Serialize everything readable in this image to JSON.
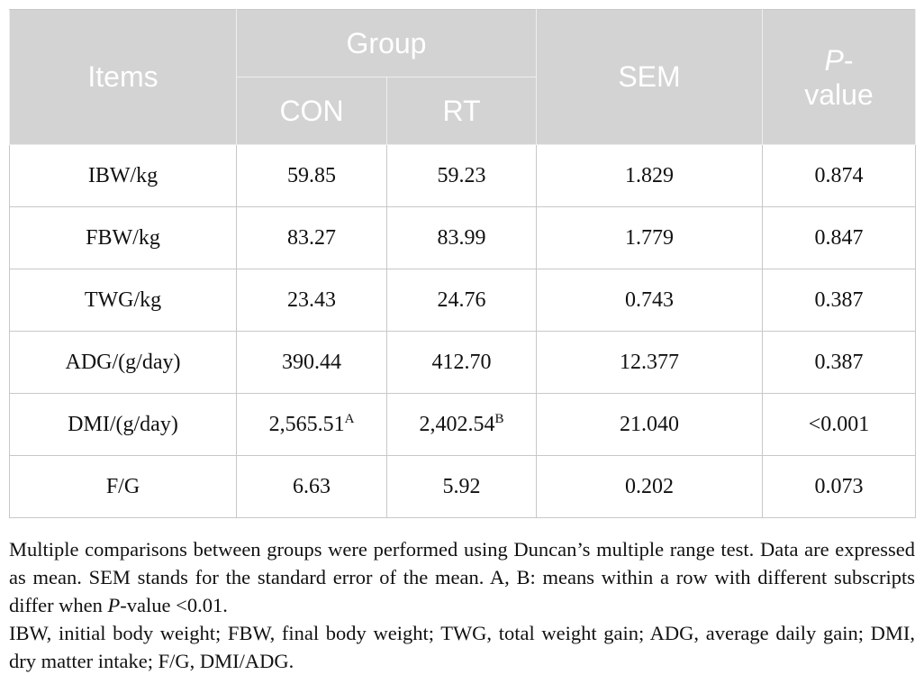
{
  "table": {
    "header": {
      "items": "Items",
      "group": "Group",
      "con": "CON",
      "rt": "RT",
      "sem": "SEM",
      "p_italic": "P",
      "p_rest": "-value"
    },
    "rows": [
      [
        "IBW/kg",
        "59.85",
        "59.23",
        "1.829",
        "0.874"
      ],
      [
        "FBW/kg",
        "83.27",
        "83.99",
        "1.779",
        "0.847"
      ],
      [
        "TWG/kg",
        "23.43",
        "24.76",
        "0.743",
        "0.387"
      ],
      [
        "ADG/(g/day)",
        "390.44",
        "412.70",
        "12.377",
        "0.387"
      ],
      [
        "DMI/(g/day)",
        {
          "text": "2,565.51",
          "sup": "A"
        },
        {
          "text": "2,402.54",
          "sup": "B"
        },
        "21.040",
        "<0.001"
      ],
      [
        "F/G",
        "6.63",
        "5.92",
        "0.202",
        "0.073"
      ]
    ]
  },
  "notes": [
    [
      "Multiple comparisons between groups were performed using Duncan’s multiple range test. Data are expressed as mean. SEM stands for the standard error of the mean. A, B: means within a row with different subscripts differ when ",
      "P",
      "-value <0.01."
    ],
    [
      "IBW, initial body weight; FBW, final body weight; TWG, total weight gain; ADG, average daily gain; DMI, dry matter intake; F/G, DMI/ADG."
    ]
  ]
}
